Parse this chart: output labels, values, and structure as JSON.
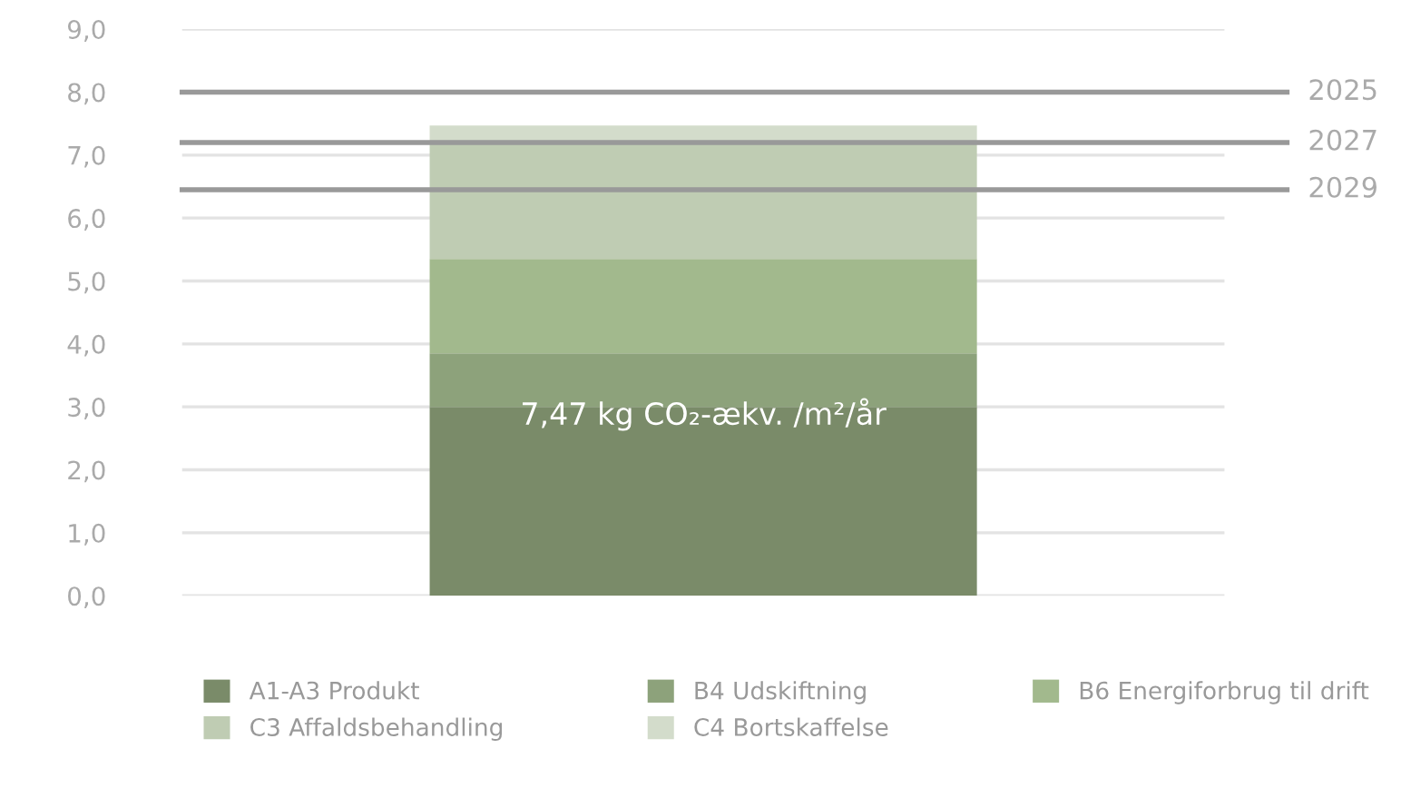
{
  "chart_data": {
    "type": "bar",
    "stacked": true,
    "categories": [
      null
    ],
    "series": [
      {
        "name": "A1-A3 Produkt",
        "color": "#7a8b69",
        "values": [
          3.0
        ]
      },
      {
        "name": "B4 Udskiftning",
        "color": "#8da27b",
        "values": [
          0.85
        ]
      },
      {
        "name": "B6 Energiforbrug til drift",
        "color": "#a2b98d",
        "values": [
          1.5
        ]
      },
      {
        "name": "C3 Affaldsbehandling",
        "color": "#bfccb3",
        "values": [
          1.85
        ]
      },
      {
        "name": "C4 Bortskaffelse",
        "color": "#d3dccb",
        "values": [
          0.27
        ]
      }
    ],
    "ylim": [
      0,
      9
    ],
    "yticks": [
      {
        "value": 0,
        "label": "0,0"
      },
      {
        "value": 1,
        "label": "1,0"
      },
      {
        "value": 2,
        "label": "2,0"
      },
      {
        "value": 3,
        "label": "3,0"
      },
      {
        "value": 4,
        "label": "4,0"
      },
      {
        "value": 5,
        "label": "5,0"
      },
      {
        "value": 6,
        "label": "6,0"
      },
      {
        "value": 7,
        "label": "7,0"
      },
      {
        "value": 8,
        "label": "8,0"
      },
      {
        "value": 9,
        "label": "9,0"
      }
    ],
    "ref_lines": [
      {
        "axis": "y",
        "value": 8.0,
        "color": "#999999"
      },
      {
        "axis": "y",
        "value": 7.2,
        "color": "#999999"
      },
      {
        "axis": "y",
        "value": 6.45,
        "color": "#999999"
      }
    ],
    "annotations": [
      "7,47 kg CO₂-ækv. /m²/år",
      "2025",
      "2027",
      "2029"
    ],
    "grid": "y",
    "legend": "bottom",
    "tick_labels": "y"
  }
}
